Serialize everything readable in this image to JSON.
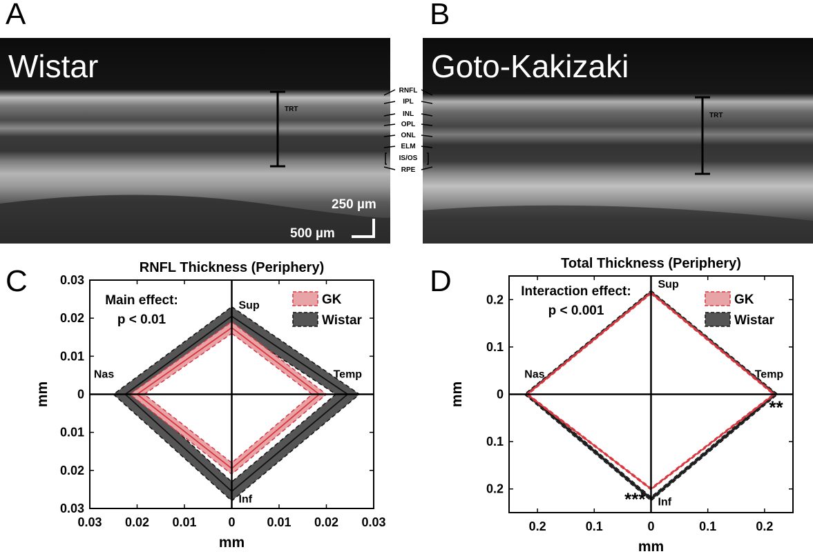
{
  "panels": {
    "A": {
      "letter": "A",
      "title": "Wistar",
      "trt_label": "TRT"
    },
    "B": {
      "letter": "B",
      "title": "Goto-Kakizaki",
      "trt_label": "TRT"
    },
    "C": {
      "letter": "C"
    },
    "D": {
      "letter": "D"
    }
  },
  "layers": [
    "RNFL",
    "IPL",
    "INL",
    "OPL",
    "ONL",
    "ELM",
    "IS/OS",
    "RPE"
  ],
  "scalebar": {
    "vertical": "250 µm",
    "horizontal": "500 µm"
  },
  "colors": {
    "gk": "#d9363e",
    "gk_fill": "#e8a3a6",
    "wistar": "#111111",
    "wistar_fill": "#555555"
  },
  "chart_data": [
    {
      "type": "radar-diamond",
      "title": "RNFL Thickness (Periphery)",
      "xlabel": "mm",
      "ylabel": "mm",
      "xlim": [
        -0.03,
        0.03
      ],
      "ylim": [
        -0.03,
        0.03
      ],
      "ticks": [
        -0.03,
        -0.02,
        -0.01,
        0,
        0.01,
        0.02,
        0.03
      ],
      "tick_labels": [
        "0.03",
        "0.02",
        "0.01",
        "0",
        "0.01",
        "0.02",
        "0.03"
      ],
      "directions": [
        "Sup",
        "Temp",
        "Inf",
        "Nas"
      ],
      "annotation": [
        "Main effect:",
        "p < 0.01"
      ],
      "legend_position": "top-right",
      "series": [
        {
          "name": "GK",
          "mean": {
            "Sup": 0.0175,
            "Temp": 0.0185,
            "Inf": 0.0195,
            "Nas": 0.02
          },
          "band": 0.0015
        },
        {
          "name": "Wistar",
          "mean": {
            "Sup": 0.0205,
            "Temp": 0.0245,
            "Inf": 0.0255,
            "Nas": 0.0225
          },
          "band": 0.0025
        }
      ],
      "significance": []
    },
    {
      "type": "radar-diamond",
      "title": "Total Thickness (Periphery)",
      "xlabel": "mm",
      "ylabel": "mm",
      "xlim": [
        -0.25,
        0.25
      ],
      "ylim": [
        -0.25,
        0.25
      ],
      "ticks": [
        -0.2,
        -0.1,
        0,
        0.1,
        0.2
      ],
      "tick_labels": [
        "0.2",
        "0.1",
        "0",
        "0.1",
        "0.2"
      ],
      "directions": [
        "Sup",
        "Temp",
        "Inf",
        "Nas"
      ],
      "annotation": [
        "Interaction effect:",
        "p < 0.001"
      ],
      "legend_position": "top-right",
      "series": [
        {
          "name": "GK",
          "mean": {
            "Sup": 0.214,
            "Temp": 0.217,
            "Inf": 0.2,
            "Nas": 0.218
          },
          "band": 0.002
        },
        {
          "name": "Wistar",
          "mean": {
            "Sup": 0.215,
            "Temp": 0.219,
            "Inf": 0.221,
            "Nas": 0.219
          },
          "band": 0.004
        }
      ],
      "significance": [
        {
          "direction": "Temp",
          "label": "**"
        },
        {
          "direction": "Inf",
          "label": "***"
        }
      ]
    }
  ]
}
